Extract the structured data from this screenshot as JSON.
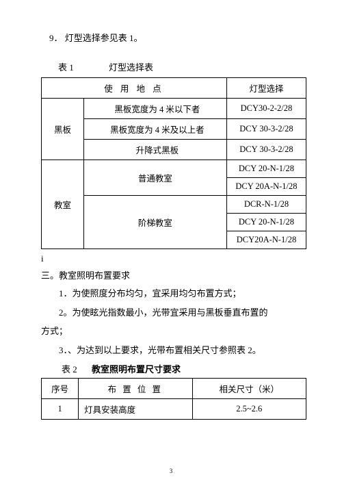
{
  "intro": "9．  灯型选择参见表 1。",
  "table1": {
    "captionLabel": "表 1",
    "captionTitle": "灯型选择表",
    "header": {
      "location": "使  用   地  点",
      "lamp": "灯型选择"
    },
    "group1": {
      "label": "黑板",
      "rows": [
        {
          "desc": "黑板宽度为 4 米以下者",
          "lamp": "DCY30-2-2/28"
        },
        {
          "desc": "黑板宽度为 4 米及以上者",
          "lamp": "DCY 30-3-2/28"
        },
        {
          "desc": "升降式黑板",
          "lamp": "DCY 30-3-2/28"
        }
      ]
    },
    "group2": {
      "label": "教室",
      "sub1": {
        "desc": "普通教室",
        "lamps": [
          "DCY 20-N-1/28",
          "DCY 20A-N-1/28"
        ]
      },
      "sub2": {
        "desc": "阶梯教室",
        "lamps": [
          "DCR-N-1/28",
          "DCY 20-N-1/28",
          "DCY20A-N-1/28"
        ]
      }
    }
  },
  "stray": "i",
  "section": "三。教室照明布置要求",
  "p1": "1．为使照度分布均匀，宜采用均匀布置方式；",
  "p2a": "2。为使眩光指数最小，光带宜采用与黑板垂直布置的",
  "p2b": "方式；",
  "p3": "3．、为达到以上要求，光带布置相关尺寸参照表 2。",
  "table2": {
    "captionLabel": "表 2",
    "captionTitle": "教室照明布置尺寸要求",
    "header": {
      "c1": "序号",
      "c2": "布 置 位 置",
      "c3": "相关尺寸（米）"
    },
    "row": {
      "c1": "1",
      "c2": "灯具安装高度",
      "c3": "2.5~2.6"
    }
  },
  "pageNum": "3"
}
